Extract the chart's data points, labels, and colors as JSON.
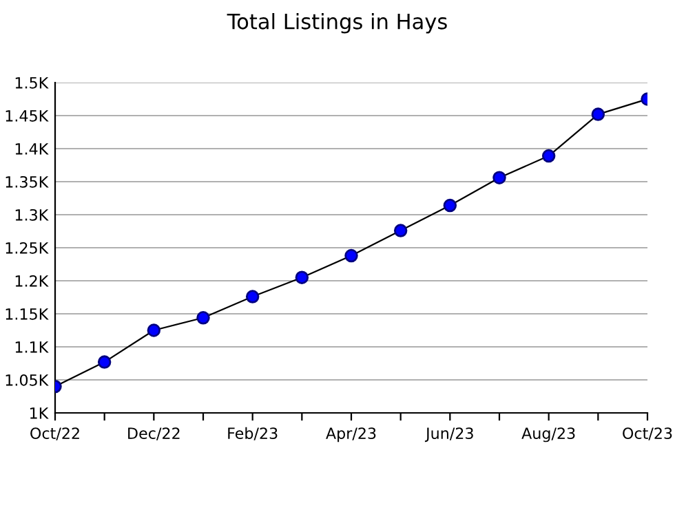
{
  "chart_data": {
    "type": "line",
    "title": "Total Listings in Hays",
    "categories": [
      "Oct/22",
      null,
      "Dec/22",
      null,
      "Feb/23",
      null,
      "Apr/23",
      null,
      "Jun/23",
      null,
      "Aug/23",
      null,
      "Oct/23"
    ],
    "series": [
      {
        "color": "#0000ff",
        "values": [
          1040,
          1077,
          1125,
          1144,
          1176,
          1205,
          1238,
          1276,
          1314,
          1356,
          1389,
          1452,
          1475
        ]
      }
    ],
    "ylim": [
      1000,
      1500
    ],
    "yticks": [
      {
        "value": 1000,
        "label": "1K"
      },
      {
        "value": 1050,
        "label": "1.05K"
      },
      {
        "value": 1100,
        "label": "1.1K"
      },
      {
        "value": 1150,
        "label": "1.15K"
      },
      {
        "value": 1200,
        "label": "1.2K"
      },
      {
        "value": 1250,
        "label": "1.25K"
      },
      {
        "value": 1300,
        "label": "1.3K"
      },
      {
        "value": 1350,
        "label": "1.35K"
      },
      {
        "value": 1400,
        "label": "1.4K"
      },
      {
        "value": 1450,
        "label": "1.45K"
      },
      {
        "value": 1500,
        "label": "1.5K"
      }
    ],
    "grid": "y",
    "marker": "circle",
    "line_style": "solid"
  }
}
